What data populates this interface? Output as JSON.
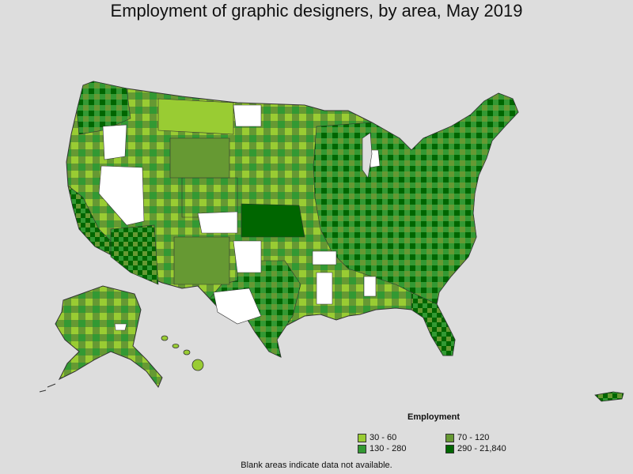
{
  "title": "Employment of graphic designers, by area, May 2019",
  "legend": {
    "title": "Employment",
    "items": [
      {
        "label": "30 - 60",
        "color": "#99cc33"
      },
      {
        "label": "70 - 120",
        "color": "#669933"
      },
      {
        "label": "130 - 280",
        "color": "#339933"
      },
      {
        "label": "290 - 21,840",
        "color": "#006600"
      }
    ]
  },
  "footnote": "Blank areas indicate data not available.",
  "colors": {
    "background": "#dddddd",
    "no_data": "#ffffff",
    "boundary": "#333333"
  }
}
